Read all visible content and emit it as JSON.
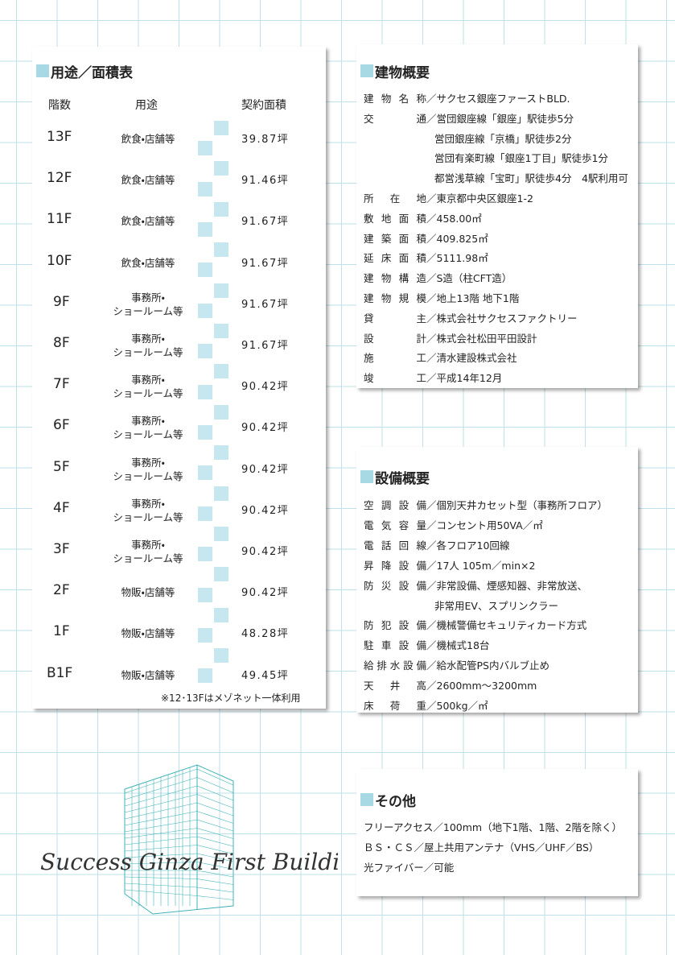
{
  "left": {
    "title": "用途／面積表",
    "headers": [
      "階数",
      "用途",
      "契約面積"
    ],
    "rows": [
      {
        "floor": "13F",
        "use": [
          "飲食・店舗等"
        ],
        "area": "39.87坪"
      },
      {
        "floor": "12F",
        "use": [
          "飲食・店舗等"
        ],
        "area": "91.46坪"
      },
      {
        "floor": "11F",
        "use": [
          "飲食・店舗等"
        ],
        "area": "91.67坪"
      },
      {
        "floor": "10F",
        "use": [
          "飲食・店舗等"
        ],
        "area": "91.67坪"
      },
      {
        "floor": "9F",
        "use": [
          "事務所・",
          "ショールーム等"
        ],
        "area": "91.67坪"
      },
      {
        "floor": "8F",
        "use": [
          "事務所・",
          "ショールーム等"
        ],
        "area": "91.67坪"
      },
      {
        "floor": "7F",
        "use": [
          "事務所・",
          "ショールーム等"
        ],
        "area": "90.42坪"
      },
      {
        "floor": "6F",
        "use": [
          "事務所・",
          "ショールーム等"
        ],
        "area": "90.42坪"
      },
      {
        "floor": "5F",
        "use": [
          "事務所・",
          "ショールーム等"
        ],
        "area": "90.42坪"
      },
      {
        "floor": "4F",
        "use": [
          "事務所・",
          "ショールーム等"
        ],
        "area": "90.42坪"
      },
      {
        "floor": "3F",
        "use": [
          "事務所・",
          "ショールーム等"
        ],
        "area": "90.42坪"
      },
      {
        "floor": "2F",
        "use": [
          "物販・店舗等"
        ],
        "area": "90.42坪"
      },
      {
        "floor": "1F",
        "use": [
          "物販・店舗等"
        ],
        "area": "48.28坪"
      },
      {
        "floor": "B1F",
        "use": [
          "物販・店舗等"
        ],
        "area": "49.45坪"
      }
    ],
    "note": "※12･13Fはメゾネット一体利用"
  },
  "building": {
    "title": "建物概要",
    "rows": [
      {
        "label": "建物名称",
        "lines": [
          "／サクセス銀座ファーストBLD."
        ]
      },
      {
        "label": "交通",
        "lines": [
          "／営団銀座線「銀座」駅徒歩5分",
          "営団銀座線「京橋」駅徒歩2分",
          "営団有楽町線「銀座1丁目」駅徒歩1分",
          "都営浅草線「宝町」駅徒歩4分　4駅利用可"
        ]
      },
      {
        "label": "所在地",
        "lines": [
          "／東京都中央区銀座1-2"
        ]
      },
      {
        "label": "敷地面積",
        "lines": [
          "／458.00㎡"
        ]
      },
      {
        "label": "建築面積",
        "lines": [
          "／409.825㎡"
        ]
      },
      {
        "label": "延床面積",
        "lines": [
          "／5111.98㎡"
        ]
      },
      {
        "label": "建物構造",
        "lines": [
          "／S造（柱CFT造）"
        ]
      },
      {
        "label": "建物規模",
        "lines": [
          "／地上13階 地下1階"
        ]
      },
      {
        "label": "貸主",
        "lines": [
          "／株式会社サクセスファクトリー"
        ]
      },
      {
        "label": "設計",
        "lines": [
          "／株式会社松田平田設計"
        ]
      },
      {
        "label": "施工",
        "lines": [
          "／清水建設株式会社"
        ]
      },
      {
        "label": "竣工",
        "lines": [
          "／平成14年12月"
        ]
      }
    ]
  },
  "equipment": {
    "title": "設備概要",
    "rows": [
      {
        "label": "空調設備",
        "lines": [
          "／個別天井カセット型（事務所フロア）"
        ]
      },
      {
        "label": "電気容量",
        "lines": [
          "／コンセント用50VA／㎡"
        ]
      },
      {
        "label": "電話回線",
        "lines": [
          "／各フロア10回線"
        ]
      },
      {
        "label": "昇降設備",
        "lines": [
          "／17人 105m／min×2"
        ]
      },
      {
        "label": "防災設備",
        "lines": [
          "／非常設備、煙感知器、非常放送、",
          "非常用EV、スプリンクラー"
        ]
      },
      {
        "label": "防犯設備",
        "lines": [
          "／機械警備セキュリティカード方式"
        ]
      },
      {
        "label": "駐車設備",
        "lines": [
          "／機械式18台"
        ]
      },
      {
        "label": "給排水設備",
        "lines": [
          "／給水配管PS内バルブ止め"
        ]
      },
      {
        "label": "天井高",
        "lines": [
          "／2600mm～3200mm"
        ]
      },
      {
        "label": "床荷重",
        "lines": [
          "／500kg／㎡"
        ]
      }
    ]
  },
  "other": {
    "title": "その他",
    "lines": [
      "フリーアクセス／100mm（地下1階、1階、2階を除く）",
      "ＢＳ・ＣＳ／屋上共用アンテナ（VHS／UHF／BS）",
      "光ファイバー／可能"
    ]
  },
  "logo": "Success Ginza First Building"
}
